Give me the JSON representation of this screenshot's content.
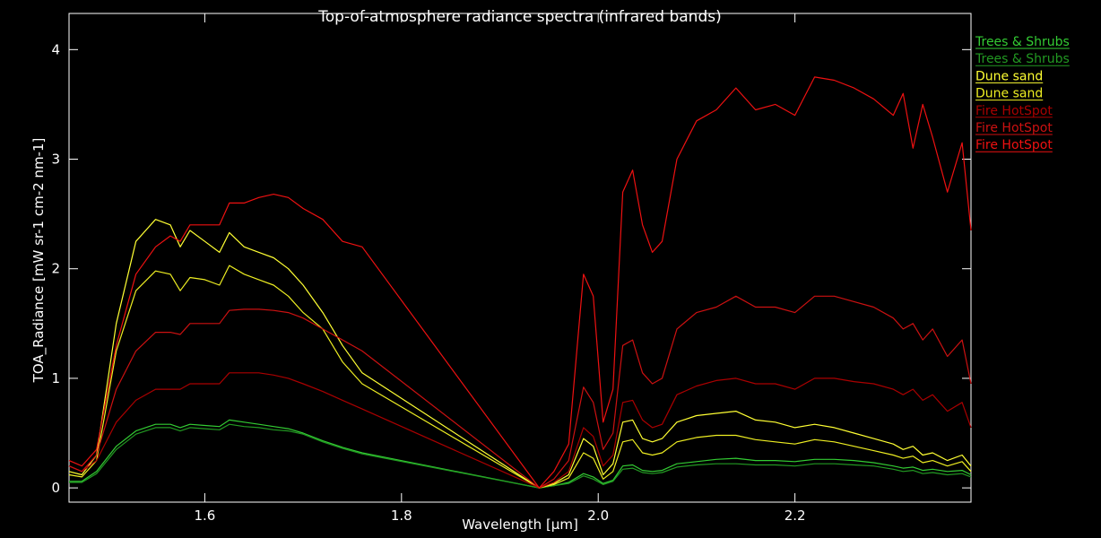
{
  "chart_data": {
    "type": "line",
    "title": "Top-of-atmosphere radiance spectra (infrared bands)",
    "xlabel": "Wavelength [µm]",
    "ylabel": "TOA_Radiance [mW sr-1 cm-2 nm-1]",
    "x": [
      1.462,
      1.475,
      1.49,
      1.51,
      1.53,
      1.55,
      1.565,
      1.575,
      1.585,
      1.6,
      1.615,
      1.625,
      1.64,
      1.655,
      1.67,
      1.685,
      1.7,
      1.72,
      1.74,
      1.76,
      1.94,
      1.955,
      1.97,
      1.985,
      1.995,
      2.005,
      2.015,
      2.025,
      2.035,
      2.045,
      2.055,
      2.065,
      2.08,
      2.1,
      2.12,
      2.14,
      2.16,
      2.18,
      2.2,
      2.22,
      2.24,
      2.26,
      2.28,
      2.3,
      2.31,
      2.32,
      2.33,
      2.34,
      2.355,
      2.37,
      2.379
    ],
    "series": [
      {
        "name": "Trees & Shrubs",
        "color": "#33cc33",
        "values": [
          0.06,
          0.06,
          0.15,
          0.38,
          0.52,
          0.58,
          0.58,
          0.55,
          0.58,
          0.57,
          0.56,
          0.62,
          0.6,
          0.58,
          0.56,
          0.54,
          0.5,
          0.43,
          0.37,
          0.32,
          0,
          0.02,
          0.05,
          0.13,
          0.1,
          0.04,
          0.07,
          0.2,
          0.21,
          0.16,
          0.15,
          0.16,
          0.22,
          0.24,
          0.26,
          0.27,
          0.25,
          0.25,
          0.24,
          0.26,
          0.26,
          0.25,
          0.23,
          0.2,
          0.18,
          0.19,
          0.16,
          0.17,
          0.15,
          0.16,
          0.12
        ]
      },
      {
        "name": "Trees & Shrubs",
        "color": "#229922",
        "values": [
          0.05,
          0.05,
          0.13,
          0.35,
          0.49,
          0.55,
          0.55,
          0.52,
          0.55,
          0.54,
          0.53,
          0.58,
          0.56,
          0.55,
          0.53,
          0.52,
          0.49,
          0.42,
          0.36,
          0.31,
          0,
          0.02,
          0.04,
          0.11,
          0.08,
          0.03,
          0.06,
          0.17,
          0.18,
          0.14,
          0.13,
          0.14,
          0.19,
          0.21,
          0.22,
          0.22,
          0.21,
          0.21,
          0.2,
          0.22,
          0.22,
          0.21,
          0.2,
          0.17,
          0.15,
          0.16,
          0.13,
          0.14,
          0.12,
          0.13,
          0.1
        ]
      },
      {
        "name": "Dune sand",
        "color": "#ffff33",
        "values": [
          0.15,
          0.12,
          0.3,
          1.5,
          2.25,
          2.45,
          2.4,
          2.2,
          2.35,
          2.25,
          2.15,
          2.33,
          2.2,
          2.15,
          2.1,
          2.0,
          1.85,
          1.6,
          1.3,
          1.05,
          0,
          0.04,
          0.12,
          0.45,
          0.38,
          0.12,
          0.22,
          0.6,
          0.62,
          0.45,
          0.42,
          0.45,
          0.6,
          0.66,
          0.68,
          0.7,
          0.62,
          0.6,
          0.55,
          0.58,
          0.55,
          0.5,
          0.45,
          0.4,
          0.35,
          0.38,
          0.3,
          0.32,
          0.25,
          0.3,
          0.2
        ]
      },
      {
        "name": "Dune sand",
        "color": "#eeee22",
        "values": [
          0.12,
          0.1,
          0.25,
          1.25,
          1.8,
          1.98,
          1.95,
          1.8,
          1.92,
          1.9,
          1.85,
          2.03,
          1.95,
          1.9,
          1.85,
          1.75,
          1.6,
          1.45,
          1.15,
          0.95,
          0,
          0.03,
          0.09,
          0.32,
          0.27,
          0.08,
          0.15,
          0.42,
          0.44,
          0.32,
          0.3,
          0.32,
          0.42,
          0.46,
          0.48,
          0.48,
          0.44,
          0.42,
          0.4,
          0.44,
          0.42,
          0.38,
          0.34,
          0.3,
          0.27,
          0.29,
          0.23,
          0.25,
          0.2,
          0.24,
          0.15
        ]
      },
      {
        "name": "Fire HotSpot",
        "color": "#aa0000",
        "values": [
          0.2,
          0.15,
          0.25,
          0.6,
          0.8,
          0.9,
          0.9,
          0.9,
          0.95,
          0.95,
          0.95,
          1.05,
          1.05,
          1.05,
          1.03,
          1.0,
          0.95,
          0.88,
          0.8,
          0.72,
          0,
          0.05,
          0.15,
          0.55,
          0.47,
          0.2,
          0.3,
          0.78,
          0.8,
          0.62,
          0.55,
          0.58,
          0.85,
          0.93,
          0.98,
          1.0,
          0.95,
          0.95,
          0.9,
          1.0,
          1.0,
          0.97,
          0.95,
          0.9,
          0.85,
          0.9,
          0.8,
          0.85,
          0.7,
          0.78,
          0.55
        ]
      },
      {
        "name": "Fire HotSpot",
        "color": "#cc1111",
        "values": [
          0.2,
          0.15,
          0.3,
          0.9,
          1.25,
          1.42,
          1.42,
          1.4,
          1.5,
          1.5,
          1.5,
          1.62,
          1.63,
          1.63,
          1.62,
          1.6,
          1.55,
          1.45,
          1.35,
          1.25,
          0,
          0.08,
          0.25,
          0.92,
          0.78,
          0.35,
          0.5,
          1.3,
          1.35,
          1.05,
          0.95,
          1.0,
          1.45,
          1.6,
          1.65,
          1.75,
          1.65,
          1.65,
          1.6,
          1.75,
          1.75,
          1.7,
          1.65,
          1.55,
          1.45,
          1.5,
          1.35,
          1.45,
          1.2,
          1.35,
          0.95
        ]
      },
      {
        "name": "Fire HotSpot",
        "color": "#ee1111",
        "values": [
          0.25,
          0.2,
          0.35,
          1.3,
          1.95,
          2.2,
          2.3,
          2.25,
          2.4,
          2.4,
          2.4,
          2.6,
          2.6,
          2.65,
          2.68,
          2.65,
          2.55,
          2.45,
          2.25,
          2.2,
          0,
          0.15,
          0.4,
          1.95,
          1.75,
          0.6,
          0.9,
          2.7,
          2.9,
          2.4,
          2.15,
          2.25,
          3.0,
          3.35,
          3.45,
          3.65,
          3.45,
          3.5,
          3.4,
          3.75,
          3.72,
          3.65,
          3.55,
          3.4,
          3.6,
          3.1,
          3.5,
          3.2,
          2.7,
          3.15,
          2.35
        ]
      }
    ],
    "xlim": [
      1.462,
      2.379
    ],
    "ylim": [
      -0.13,
      4.33
    ],
    "xticks": [
      1.6,
      1.8,
      {
        "value": 2,
        "label": "2.0"
      },
      2.2
    ],
    "yticks": [
      0,
      1,
      2,
      3,
      4
    ],
    "grid": false,
    "legend": "right"
  }
}
